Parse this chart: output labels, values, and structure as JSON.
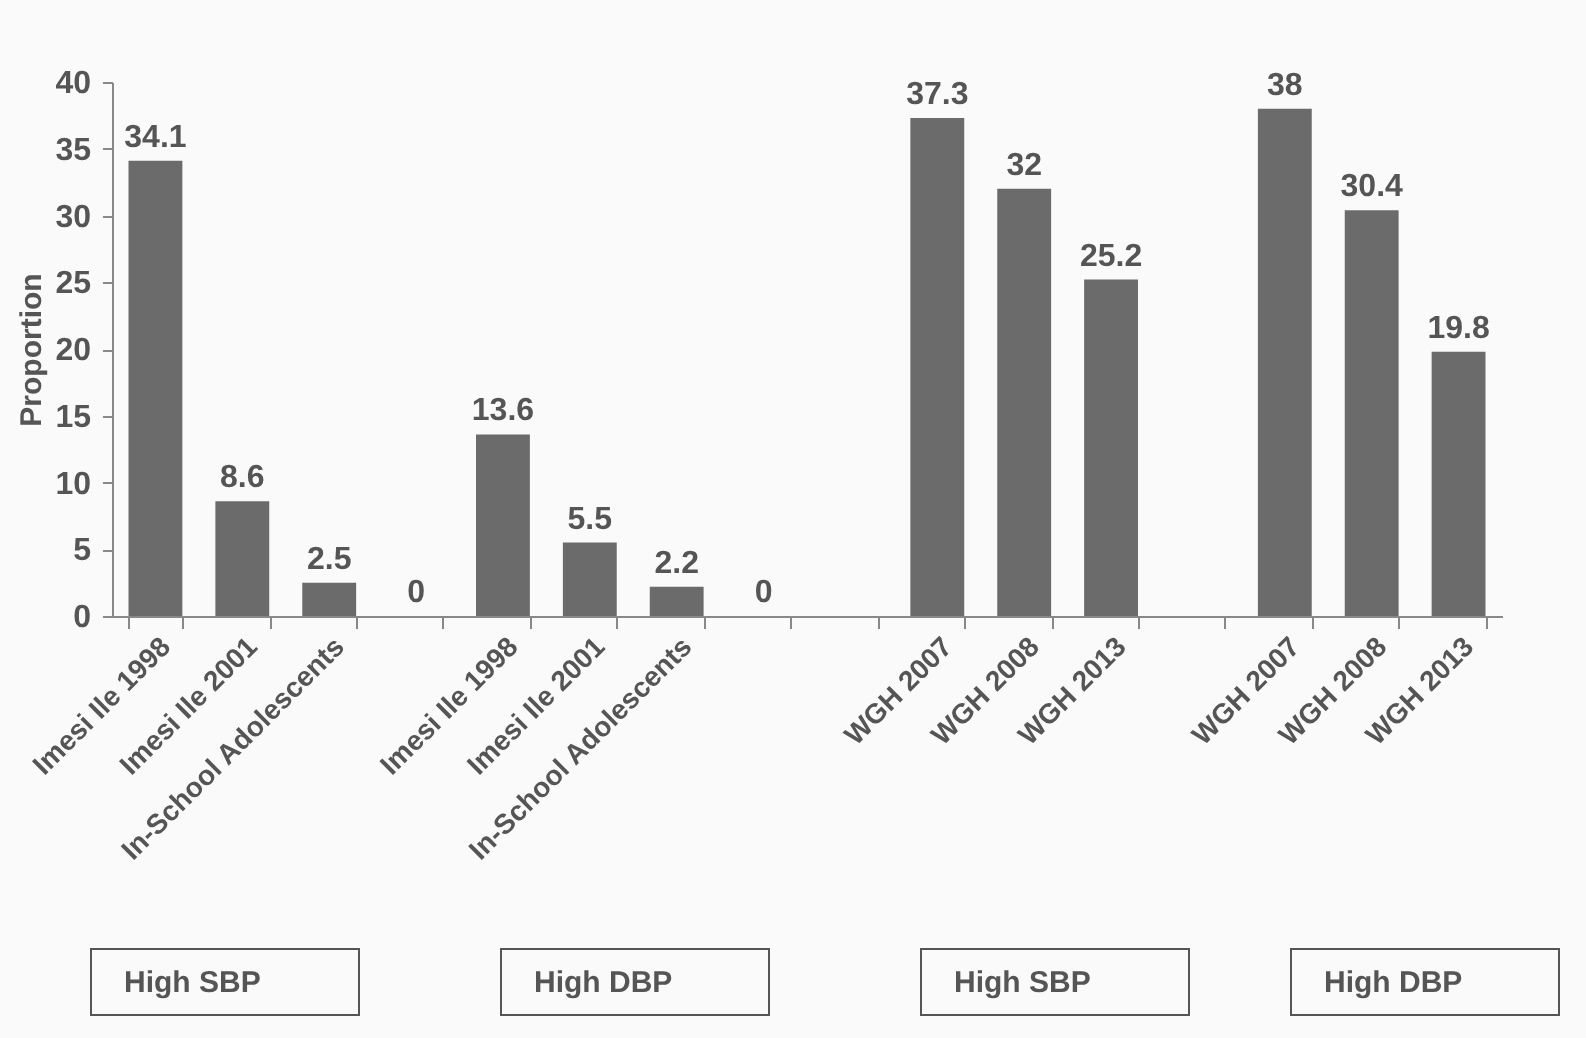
{
  "chart_data": {
    "type": "bar",
    "ylabel": "Proportion",
    "categories": [
      "Imesi Ile 1998",
      "Imesi Ile 2001",
      "In-School Adolescents",
      null,
      "Imesi Ile 1998",
      "Imesi Ile 2001",
      "In-School Adolescents",
      null,
      null,
      "WGH 2007",
      "WGH 2008",
      "WGH 2013",
      null,
      "WGH 2007",
      "WGH 2008",
      "WGH 2013"
    ],
    "values": [
      34.1,
      8.6,
      2.5,
      0,
      13.6,
      5.5,
      2.2,
      0,
      null,
      37.3,
      32,
      25.2,
      null,
      38,
      30.4,
      19.8
    ],
    "color": "#6b6b6b",
    "ylim": [
      0,
      40
    ],
    "yticks": [
      0,
      5,
      10,
      15,
      20,
      25,
      30,
      35,
      40
    ],
    "data_labels": true,
    "grid": false,
    "annotations": [
      "High SBP",
      "High DBP",
      "High SBP",
      "High DBP"
    ]
  }
}
